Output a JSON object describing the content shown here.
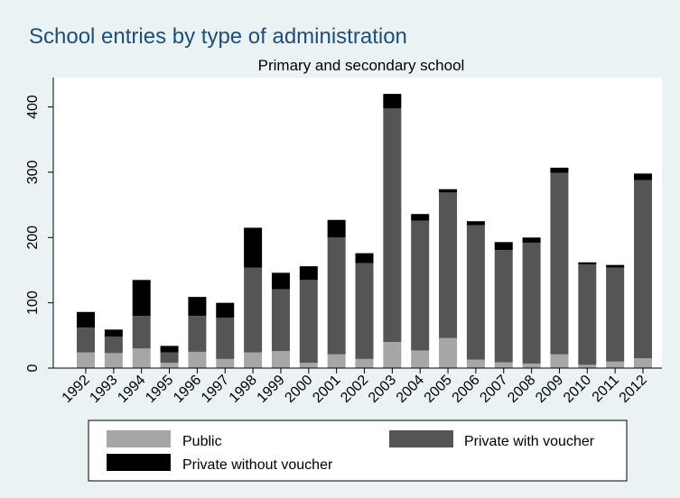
{
  "chart_data": {
    "type": "bar",
    "stacked": true,
    "title": "School entries by type of administration",
    "subtitle": "Primary and secondary school",
    "xlabel": "",
    "ylabel": "",
    "ylim": [
      0,
      445
    ],
    "yticks": [
      0,
      100,
      200,
      300,
      400
    ],
    "grid": false,
    "legend_position": "bottom",
    "categories": [
      "1992",
      "1993",
      "1994",
      "1995",
      "1996",
      "1997",
      "1998",
      "1999",
      "2000",
      "2001",
      "2002",
      "2003",
      "2004",
      "2005",
      "2006",
      "2007",
      "2008",
      "2009",
      "2010",
      "2011",
      "2012"
    ],
    "series": [
      {
        "name": "Public",
        "color": "#a6a6a6",
        "values": [
          24,
          23,
          30,
          8,
          25,
          14,
          24,
          26,
          8,
          21,
          14,
          40,
          27,
          46,
          13,
          9,
          7,
          21,
          5,
          10,
          15
        ]
      },
      {
        "name": "Private with voucher",
        "color": "#555555",
        "values": [
          38,
          25,
          50,
          16,
          55,
          63,
          130,
          95,
          127,
          179,
          147,
          358,
          199,
          223,
          206,
          172,
          185,
          278,
          154,
          144,
          273
        ]
      },
      {
        "name": "Private without voucher",
        "color": "#000000",
        "values": [
          24,
          11,
          55,
          10,
          29,
          23,
          61,
          25,
          21,
          27,
          15,
          22,
          10,
          5,
          6,
          12,
          8,
          8,
          3,
          4,
          10
        ]
      }
    ]
  }
}
